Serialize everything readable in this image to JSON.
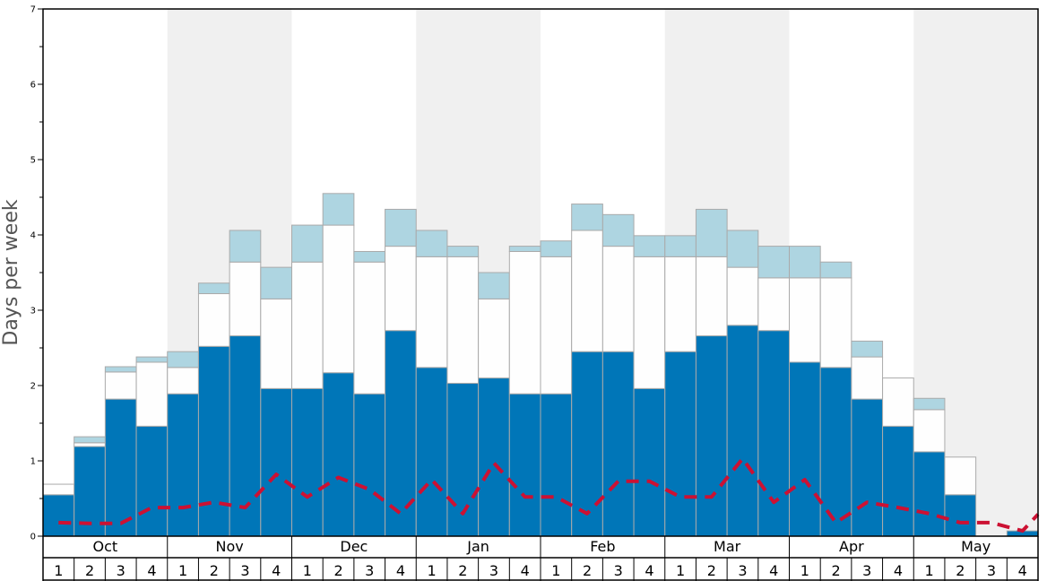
{
  "colors": {
    "shade": "#f0f0f0",
    "dark": "#0076b8",
    "white": "#fefefe",
    "light": "#aed5e1",
    "bar_stroke": "#aaaaaa",
    "dash": "#cc1133",
    "frame": "#000000"
  },
  "chart_data": {
    "type": "bar",
    "stacked": true,
    "ylabel": "Days per week",
    "ylim": [
      0,
      7
    ],
    "yticks": [
      0,
      1,
      2,
      3,
      4,
      5,
      6,
      7
    ],
    "months": [
      "Oct",
      "Nov",
      "Dec",
      "Jan",
      "Feb",
      "Mar",
      "Apr",
      "May"
    ],
    "week_labels": [
      "1",
      "2",
      "3",
      "4",
      "1",
      "2",
      "3",
      "4",
      "1",
      "2",
      "3",
      "4",
      "1",
      "2",
      "3",
      "4",
      "1",
      "2",
      "3",
      "4",
      "1",
      "2",
      "3",
      "4",
      "1",
      "2",
      "3",
      "4",
      "1",
      "2",
      "3",
      "4"
    ],
    "shaded_months": [
      "Nov",
      "Jan",
      "Mar",
      "May"
    ],
    "series": [
      {
        "key": "dark",
        "values": [
          0.55,
          1.19,
          1.82,
          1.46,
          1.89,
          2.52,
          2.66,
          1.96,
          1.96,
          2.17,
          1.89,
          2.73,
          2.24,
          2.03,
          2.1,
          1.89,
          1.89,
          2.45,
          2.45,
          1.96,
          2.45,
          2.66,
          2.8,
          2.73,
          2.31,
          2.24,
          1.82,
          1.46,
          1.12,
          0.55,
          0.0,
          0.07
        ]
      },
      {
        "key": "white",
        "values": [
          0.14,
          0.05,
          0.36,
          0.85,
          0.35,
          0.7,
          0.98,
          1.19,
          1.68,
          1.96,
          1.75,
          1.12,
          1.47,
          1.68,
          1.05,
          1.89,
          1.82,
          1.61,
          1.4,
          1.75,
          1.26,
          1.05,
          0.77,
          0.7,
          1.12,
          1.19,
          0.56,
          0.64,
          0.56,
          0.5,
          0.0,
          0.0
        ]
      },
      {
        "key": "light",
        "values": [
          0.0,
          0.08,
          0.07,
          0.07,
          0.21,
          0.14,
          0.42,
          0.42,
          0.49,
          0.42,
          0.14,
          0.49,
          0.35,
          0.14,
          0.35,
          0.07,
          0.21,
          0.35,
          0.42,
          0.28,
          0.28,
          0.63,
          0.49,
          0.42,
          0.42,
          0.21,
          0.21,
          0.0,
          0.15,
          0.0,
          0.0,
          0.0
        ]
      }
    ],
    "line": {
      "style": "dashed",
      "values": [
        0.18,
        0.17,
        0.17,
        0.38,
        0.38,
        0.45,
        0.38,
        0.82,
        0.52,
        0.78,
        0.62,
        0.3,
        0.75,
        0.3,
        0.97,
        0.52,
        0.52,
        0.3,
        0.73,
        0.73,
        0.52,
        0.52,
        1.03,
        0.45,
        0.75,
        0.18,
        0.45,
        0.38,
        0.3,
        0.18,
        0.18,
        0.07
      ]
    }
  }
}
